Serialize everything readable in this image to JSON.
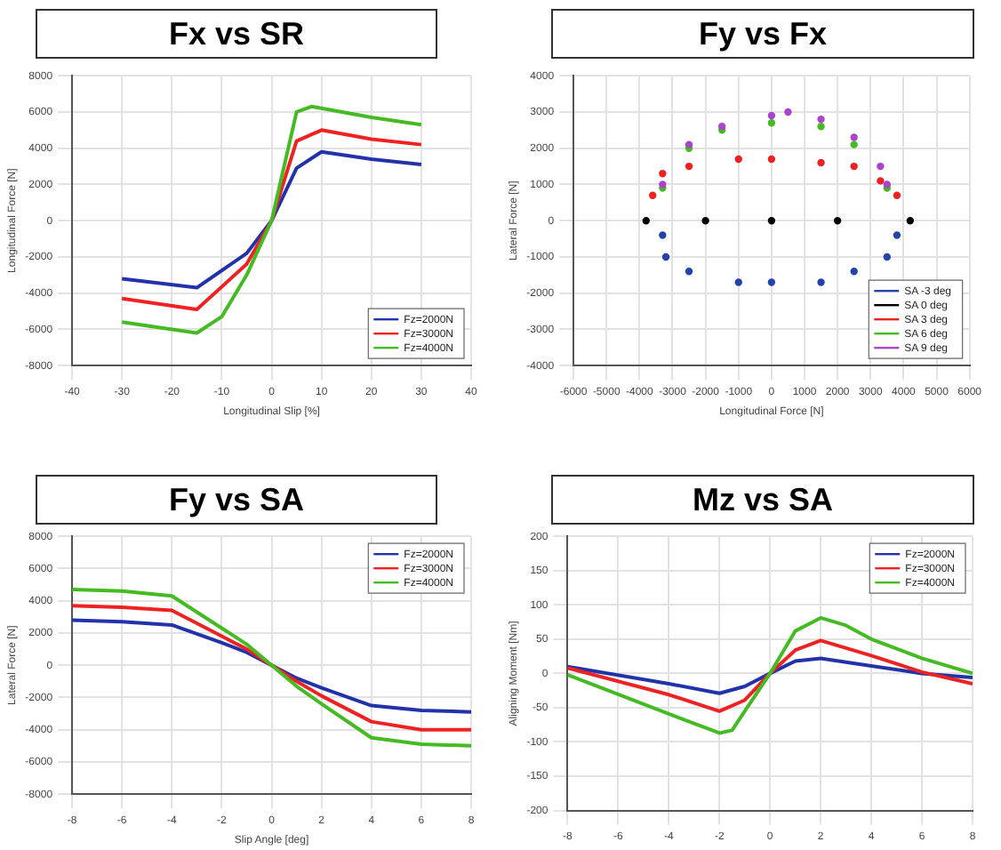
{
  "chart_data": [
    {
      "type": "line",
      "title": "Fx vs SR",
      "xlabel": "Longitudinal Slip [%]",
      "ylabel": "Longitudinal Force [N]",
      "xlim": [
        -40,
        40
      ],
      "xticks": [
        -40,
        -30,
        -20,
        -10,
        0,
        10,
        20,
        30,
        40
      ],
      "ylim": [
        -8000,
        8000
      ],
      "yticks": [
        -8000,
        -6000,
        -4000,
        -2000,
        0,
        2000,
        4000,
        6000,
        8000
      ],
      "grid": true,
      "legend": "bottom right",
      "marker": "none",
      "line_style": "solid",
      "series": [
        {
          "name": "Fz=2000N",
          "color": "#2233aa",
          "x": [
            -30,
            -15,
            -5,
            0,
            5,
            10,
            20,
            30
          ],
          "values": [
            -3200,
            -3700,
            -1800,
            0,
            2900,
            3800,
            3400,
            3100
          ]
        },
        {
          "name": "Fz=3000N",
          "color": "#ee2222",
          "x": [
            -30,
            -15,
            -5,
            0,
            5,
            10,
            20,
            30
          ],
          "values": [
            -4300,
            -4900,
            -2400,
            0,
            4400,
            5000,
            4500,
            4200
          ]
        },
        {
          "name": "Fz=4000N",
          "color": "#44bb22",
          "x": [
            -30,
            -15,
            -10,
            -5,
            0,
            5,
            8,
            20,
            30
          ],
          "values": [
            -5600,
            -6200,
            -5300,
            -3000,
            0,
            6000,
            6300,
            5700,
            5300
          ]
        }
      ]
    },
    {
      "type": "scatter",
      "title": "Fy vs Fx",
      "xlabel": "Longitudinal Force [N]",
      "ylabel": "Lateral Force [N]",
      "xlim": [
        -6000,
        6000
      ],
      "xticks": [
        -6000,
        -5000,
        -4000,
        -3000,
        -2000,
        -1000,
        0,
        1000,
        2000,
        3000,
        4000,
        5000,
        6000
      ],
      "ylim": [
        -4000,
        4000
      ],
      "yticks": [
        -4000,
        -3000,
        -2000,
        -1000,
        0,
        1000,
        2000,
        3000,
        4000
      ],
      "grid": true,
      "legend": "bottom right",
      "marker": "circle",
      "series": [
        {
          "name": "SA -3 deg",
          "color": "#2244aa",
          "x": [
            -3300,
            -3200,
            -2500,
            -1000,
            0,
            1500,
            2500,
            3500,
            3800
          ],
          "values": [
            -400,
            -1000,
            -1400,
            -1700,
            -1700,
            -1700,
            -1400,
            -1000,
            -400
          ]
        },
        {
          "name": "SA 0 deg",
          "color": "#000000",
          "x": [
            -3800,
            -2000,
            0,
            2000,
            4200
          ],
          "values": [
            0,
            0,
            0,
            0,
            0
          ]
        },
        {
          "name": "SA 3 deg",
          "color": "#ee2222",
          "x": [
            -3600,
            -3300,
            -2500,
            -1000,
            0,
            1500,
            2500,
            3300,
            3800
          ],
          "values": [
            700,
            1300,
            1500,
            1700,
            1700,
            1600,
            1500,
            1100,
            700
          ]
        },
        {
          "name": "SA 6 deg",
          "color": "#44bb22",
          "x": [
            -3300,
            -2500,
            -1500,
            0,
            1500,
            2500,
            3500
          ],
          "values": [
            900,
            2000,
            2500,
            2700,
            2600,
            2100,
            900
          ]
        },
        {
          "name": "SA 9 deg",
          "color": "#aa44cc",
          "x": [
            -3300,
            -2500,
            -1500,
            0,
            500,
            1500,
            2500,
            3300,
            3500
          ],
          "values": [
            1000,
            2100,
            2600,
            2900,
            3000,
            2800,
            2300,
            1500,
            1000
          ]
        }
      ]
    },
    {
      "type": "line",
      "title": "Fy vs SA",
      "xlabel": "Slip Angle [deg]",
      "ylabel": "Lateral Force [N]",
      "xlim": [
        -8,
        8
      ],
      "xticks": [
        -8,
        -6,
        -4,
        -2,
        0,
        2,
        4,
        6,
        8
      ],
      "ylim": [
        -8000,
        8000
      ],
      "yticks": [
        -8000,
        -6000,
        -4000,
        -2000,
        0,
        2000,
        4000,
        6000,
        8000
      ],
      "grid": true,
      "legend": "top right",
      "marker": "none",
      "line_style": "solid",
      "series": [
        {
          "name": "Fz=2000N",
          "color": "#2233aa",
          "x": [
            -8,
            -6,
            -4,
            -2,
            -1,
            0,
            1,
            2,
            4,
            6,
            8
          ],
          "values": [
            2800,
            2700,
            2500,
            1400,
            800,
            0,
            -800,
            -1400,
            -2500,
            -2800,
            -2900
          ]
        },
        {
          "name": "Fz=3000N",
          "color": "#ee2222",
          "x": [
            -8,
            -6,
            -4,
            -2,
            -1,
            0,
            1,
            2,
            4,
            6,
            8
          ],
          "values": [
            3700,
            3600,
            3400,
            1800,
            1000,
            0,
            -1000,
            -1900,
            -3500,
            -4000,
            -4000
          ]
        },
        {
          "name": "Fz=4000N",
          "color": "#44bb22",
          "x": [
            -8,
            -6,
            -4,
            -2,
            -1,
            0,
            1,
            2,
            4,
            6,
            8
          ],
          "values": [
            4700,
            4600,
            4300,
            2300,
            1300,
            0,
            -1300,
            -2400,
            -4500,
            -4900,
            -5000
          ]
        }
      ]
    },
    {
      "type": "line",
      "title": "Mz vs SA",
      "ylabel": "Aligning Moment [Nm]",
      "xlim": [
        -8,
        8
      ],
      "xticks": [
        -8,
        -6,
        -4,
        -2,
        0,
        2,
        4,
        6,
        8
      ],
      "ylim": [
        -200,
        200
      ],
      "yticks": [
        -200,
        -150,
        -100,
        -50,
        0,
        50,
        100,
        150,
        200
      ],
      "grid": true,
      "legend": "top right",
      "marker": "none",
      "line_style": "solid",
      "series": [
        {
          "name": "Fz=2000N",
          "color": "#2233aa",
          "x": [
            -8,
            -4,
            -2,
            -1,
            0,
            1,
            2,
            4,
            6,
            8
          ],
          "values": [
            10,
            -15,
            -29,
            -19,
            0,
            18,
            22,
            11,
            0,
            -6
          ]
        },
        {
          "name": "Fz=3000N",
          "color": "#ee2222",
          "x": [
            -8,
            -4,
            -2,
            -1,
            0,
            1,
            2,
            4,
            6,
            8
          ],
          "values": [
            8,
            -31,
            -55,
            -39,
            0,
            34,
            48,
            26,
            2,
            -15
          ]
        },
        {
          "name": "Fz=4000N",
          "color": "#44bb22",
          "x": [
            -8,
            -4,
            -2,
            -1.5,
            -1,
            0,
            1,
            2,
            3,
            4,
            6,
            8
          ],
          "values": [
            -2,
            -59,
            -87,
            -83,
            -55,
            0,
            62,
            81,
            70,
            50,
            22,
            0
          ]
        }
      ]
    }
  ]
}
